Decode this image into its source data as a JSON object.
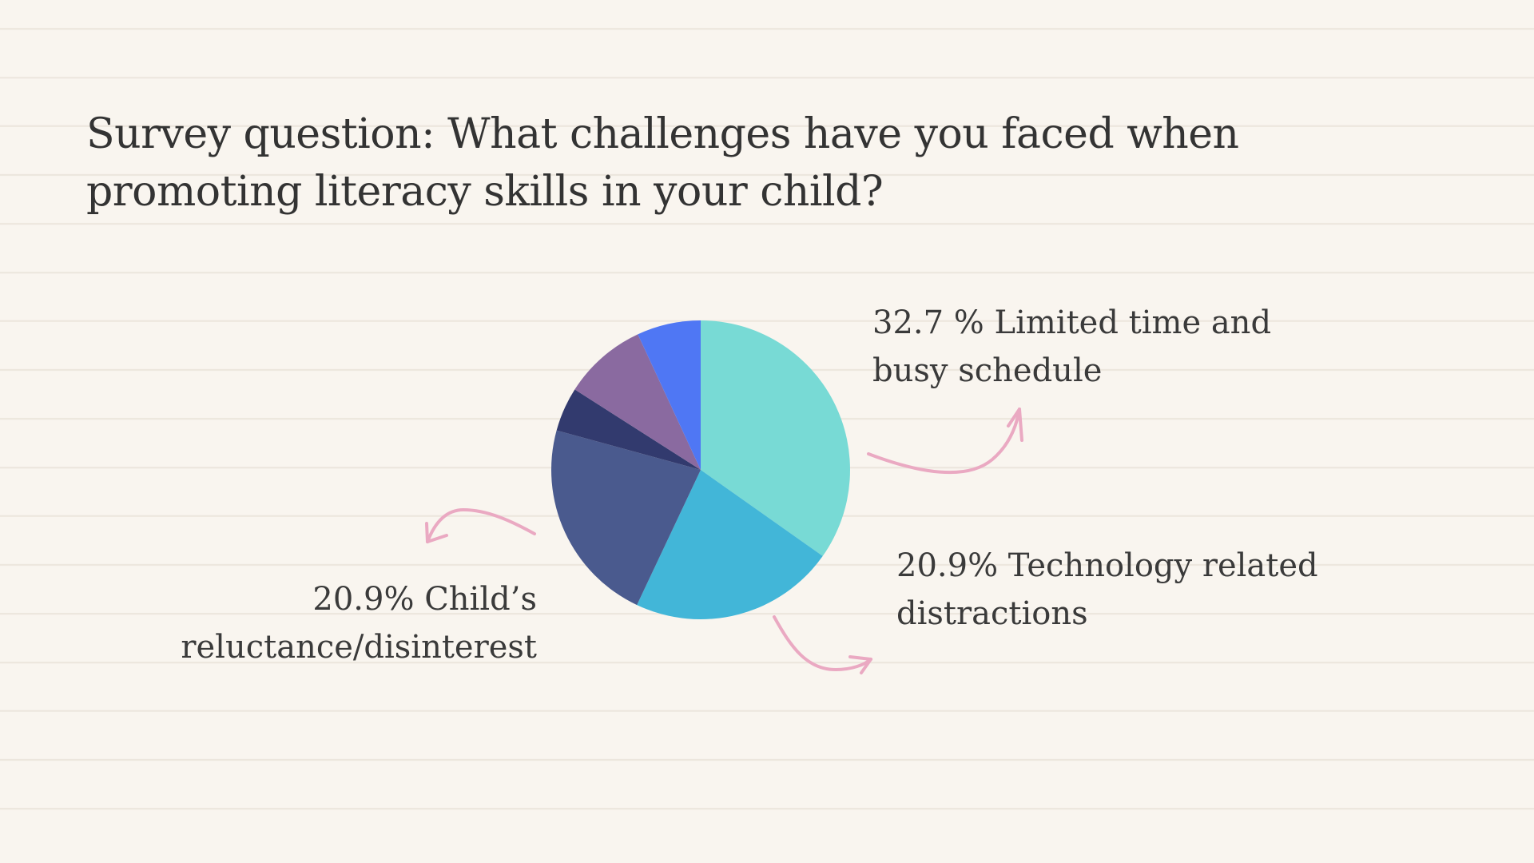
{
  "title": "Survey question: What challenges have you faced when promoting literacy skills in your child?",
  "colors": {
    "background": "#f9f5ef",
    "arrow": "#eaa9c2"
  },
  "chart_data": {
    "type": "pie",
    "title": "Survey question: What challenges have you faced when promoting literacy skills in your child?",
    "slices": [
      {
        "label": "Limited time and busy schedule",
        "value": 32.7,
        "color": "#78dad5"
      },
      {
        "label": "Technology related distractions",
        "value": 20.9,
        "color": "#42b6d8"
      },
      {
        "label": "Child’s reluctance/disinterest",
        "value": 20.9,
        "color": "#4a5a8e"
      },
      {
        "value": 4.5,
        "color": "#323a6e"
      },
      {
        "value": 8.5,
        "color": "#8a6aa0"
      },
      {
        "value": 6.5,
        "color": "#4f77f4"
      }
    ],
    "start_angle": "12 o'clock",
    "direction": "clockwise"
  },
  "annotations": {
    "limited": {
      "line1": "32.7 % Limited time and",
      "line2": "busy schedule"
    },
    "technology": {
      "line1": "20.9% Technology related",
      "line2": "distractions"
    },
    "child": {
      "line1": "20.9% Child’s",
      "line2": "reluctance/disinterest"
    }
  }
}
